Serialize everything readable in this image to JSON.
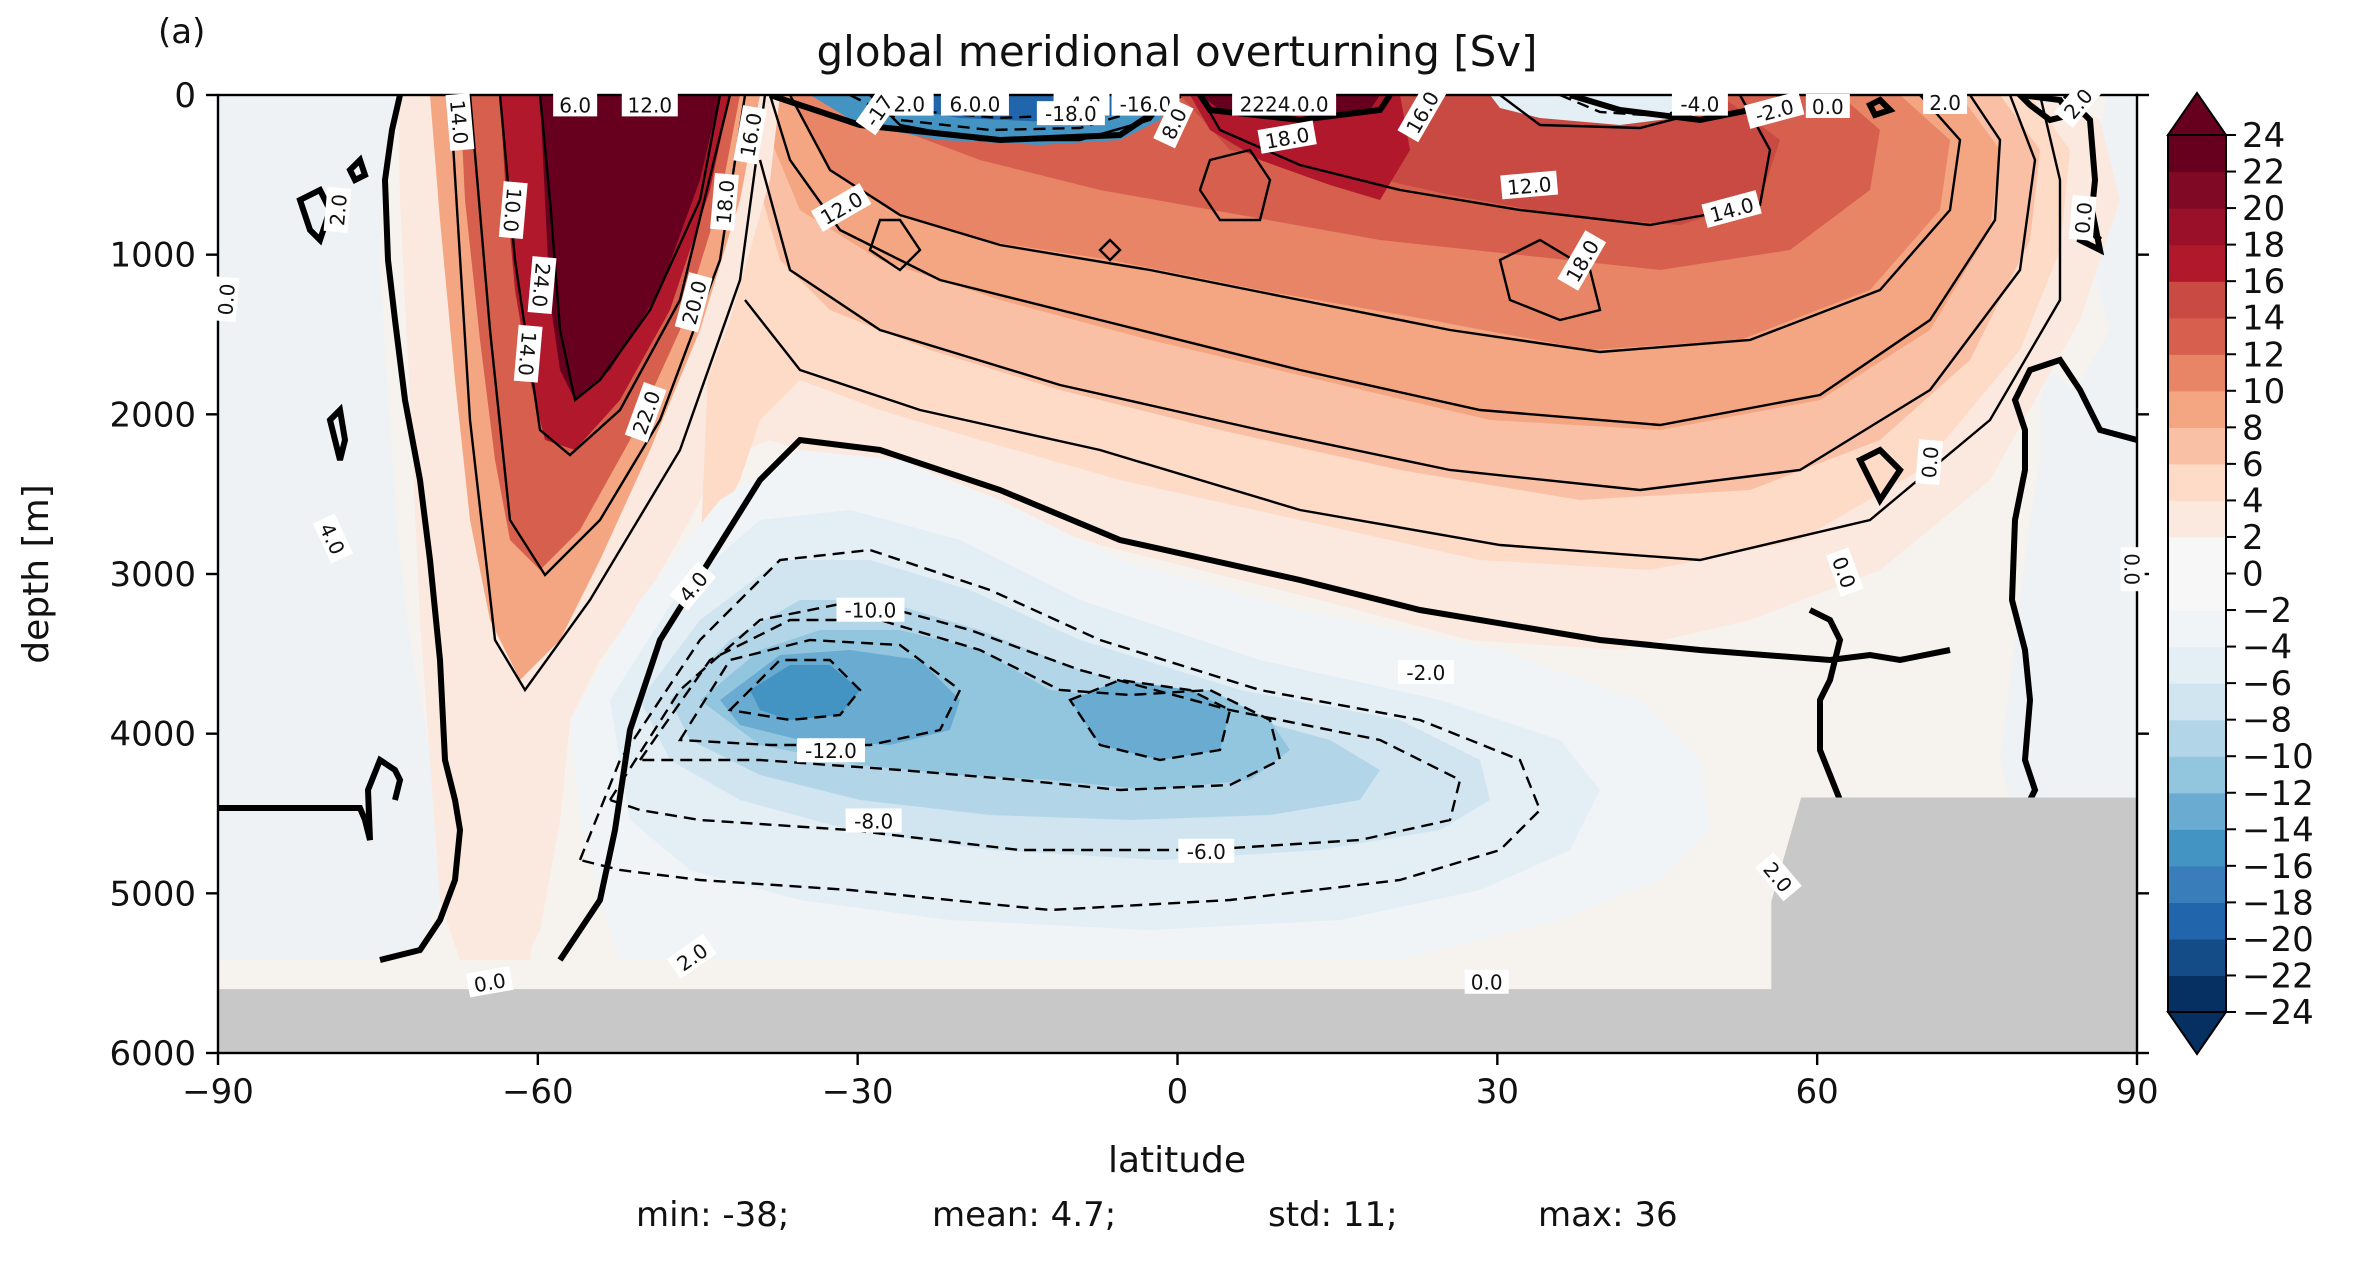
{
  "panel_label": "(a)",
  "stats": {
    "min": "min: -38;",
    "mean": "mean: 4.7;",
    "std": "std: 11;",
    "max": "max: 36"
  },
  "chart_data": {
    "type": "heatmap",
    "title": "global meridional overturning [Sv]",
    "xlabel": "latitude",
    "ylabel": "depth [m]",
    "xlim": [
      -90,
      90
    ],
    "ylim": [
      6000,
      0
    ],
    "x_ticks": [
      -90,
      -60,
      -30,
      0,
      30,
      60,
      90
    ],
    "x_tick_labels": [
      "−90",
      "−60",
      "−30",
      "0",
      "30",
      "60",
      "90"
    ],
    "y_ticks": [
      0,
      1000,
      2000,
      3000,
      4000,
      5000,
      6000
    ],
    "y_tick_labels": [
      "0",
      "1000",
      "2000",
      "3000",
      "4000",
      "5000",
      "6000"
    ],
    "colorbar": {
      "levels": [
        -24,
        -22,
        -20,
        -18,
        -16,
        -14,
        -12,
        -10,
        -8,
        -6,
        -4,
        -2,
        0,
        2,
        4,
        6,
        8,
        10,
        12,
        14,
        16,
        18,
        20,
        22,
        24
      ],
      "tick_labels": [
        "24",
        "22",
        "20",
        "18",
        "16",
        "14",
        "12",
        "10",
        "8",
        "6",
        "4",
        "2",
        "0",
        "−2",
        "−4",
        "−6",
        "−8",
        "−10",
        "−12",
        "−14",
        "−16",
        "−18",
        "−20",
        "−22",
        "−24"
      ],
      "colormap": "RdBu_r",
      "extend": "both",
      "colors": [
        "#053061",
        "#134c87",
        "#2166ac",
        "#3a7dbb",
        "#4393c3",
        "#6aabd1",
        "#92c5de",
        "#b3d5e8",
        "#d1e5f0",
        "#e3eef5",
        "#f0f4f7",
        "#f7f7f7",
        "#f7f7f7",
        "#fbe8de",
        "#fddbc7",
        "#f9c0a5",
        "#f4a582",
        "#e88567",
        "#d6604d",
        "#c84a42",
        "#b2182b",
        "#9a1029",
        "#800a26",
        "#67001f"
      ]
    },
    "contour_labels": [
      {
        "text": "6.0",
        "lat": -56.5,
        "depth": 15,
        "angle": 0
      },
      {
        "text": "12.0",
        "lat": -49.5,
        "depth": 15,
        "angle": 0
      },
      {
        "text": "14.0",
        "lat": -67.4,
        "depth": 170,
        "angle": 85
      },
      {
        "text": "16.0",
        "lat": -40.0,
        "depth": 250,
        "angle": -80
      },
      {
        "text": "10.0",
        "lat": -62.4,
        "depth": 720,
        "angle": 95
      },
      {
        "text": "18.0",
        "lat": -42.4,
        "depth": 670,
        "angle": -85
      },
      {
        "text": "2.0",
        "lat": -78.7,
        "depth": 720,
        "angle": -85
      },
      {
        "text": "0.0",
        "lat": -89.2,
        "depth": 1280,
        "angle": -85
      },
      {
        "text": "24.0",
        "lat": -59.7,
        "depth": 1190,
        "angle": 95
      },
      {
        "text": "14.0",
        "lat": -61.0,
        "depth": 1620,
        "angle": 95
      },
      {
        "text": "20.0",
        "lat": -45.3,
        "depth": 1300,
        "angle": -75
      },
      {
        "text": "22.0",
        "lat": -49.8,
        "depth": 1990,
        "angle": -70
      },
      {
        "text": "4.0",
        "lat": -79.3,
        "depth": 2780,
        "angle": 65
      },
      {
        "text": "-2.0",
        "lat": -25.5,
        "depth": 10,
        "angle": 0
      },
      {
        "text": "6.0.0",
        "lat": -19.0,
        "depth": 10,
        "angle": 0
      },
      {
        "text": "-4.0",
        "lat": -9.0,
        "depth": 10,
        "angle": 0
      },
      {
        "text": "-16.0",
        "lat": -3.0,
        "depth": 10,
        "angle": 0
      },
      {
        "text": "-18.0",
        "lat": -10.0,
        "depth": 120,
        "angle": 0
      },
      {
        "text": "-17",
        "lat": -28.0,
        "depth": 100,
        "angle": -55
      },
      {
        "text": "8.0",
        "lat": -0.3,
        "depth": 180,
        "angle": -65
      },
      {
        "text": "12.0",
        "lat": -31.5,
        "depth": 710,
        "angle": -30
      },
      {
        "text": "2224.0.0",
        "lat": 10.0,
        "depth": 10,
        "angle": 0
      },
      {
        "text": "16.0",
        "lat": 23.0,
        "depth": 110,
        "angle": -60
      },
      {
        "text": "18.0",
        "lat": 10.3,
        "depth": 270,
        "angle": -10
      },
      {
        "text": "12.0",
        "lat": 33.0,
        "depth": 570,
        "angle": -5
      },
      {
        "text": "14.0",
        "lat": 52.0,
        "depth": 720,
        "angle": -15
      },
      {
        "text": "18.0",
        "lat": 38.0,
        "depth": 1040,
        "angle": -60
      },
      {
        "text": "-4.0",
        "lat": 49.0,
        "depth": 10,
        "angle": 0
      },
      {
        "text": "-2.0",
        "lat": 56.0,
        "depth": 100,
        "angle": -15
      },
      {
        "text": "0.0",
        "lat": 61.0,
        "depth": 75,
        "angle": 0
      },
      {
        "text": "2.0",
        "lat": 72.0,
        "depth": 0,
        "angle": 0
      },
      {
        "text": "2.0",
        "lat": 84.5,
        "depth": 5,
        "angle": -50
      },
      {
        "text": "0.0",
        "lat": 85.0,
        "depth": 770,
        "angle": -85
      },
      {
        "text": "0.0",
        "lat": 70.6,
        "depth": 2300,
        "angle": -85
      },
      {
        "text": "0.0",
        "lat": 62.5,
        "depth": 2990,
        "angle": 70
      },
      {
        "text": "0.0",
        "lat": 89.5,
        "depth": 2970,
        "angle": 90
      },
      {
        "text": "-10.0",
        "lat": -28.8,
        "depth": 3230,
        "angle": 0
      },
      {
        "text": "4.0",
        "lat": -45.4,
        "depth": 3080,
        "angle": -50
      },
      {
        "text": "-2.0",
        "lat": 23.3,
        "depth": 3620,
        "angle": 0
      },
      {
        "text": "-12.0",
        "lat": -32.5,
        "depth": 4110,
        "angle": 0
      },
      {
        "text": "-8.0",
        "lat": -28.5,
        "depth": 4550,
        "angle": 0
      },
      {
        "text": "-6.0",
        "lat": 2.7,
        "depth": 4740,
        "angle": 0
      },
      {
        "text": "2.0",
        "lat": 56.3,
        "depth": 4900,
        "angle": 50
      },
      {
        "text": "2.0",
        "lat": -45.5,
        "depth": 5400,
        "angle": -35
      },
      {
        "text": "0.0",
        "lat": -64.5,
        "depth": 5560,
        "angle": -10
      },
      {
        "text": "0.0",
        "lat": 29.0,
        "depth": 5560,
        "angle": 0
      }
    ],
    "bathymetry": {
      "description_shown": "grey land/seafloor mask",
      "color": "#c8c8c8",
      "floor_points": [
        {
          "lat": -90,
          "depth": 5600
        },
        {
          "lat": 55.7,
          "depth": 5600
        },
        {
          "lat": 55.7,
          "depth": 5050
        },
        {
          "lat": 58.5,
          "depth": 4400
        },
        {
          "lat": 90,
          "depth": 4400
        }
      ]
    }
  }
}
